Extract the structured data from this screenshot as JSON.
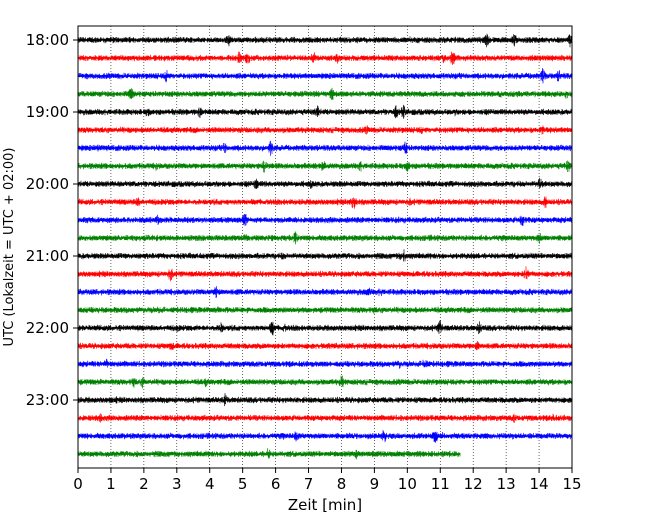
{
  "chart_data": {
    "type": "line",
    "title": "",
    "xlabel": "Zeit  [min]",
    "ylabel": "UTC (Lokalzeit = UTC + 02:00)",
    "xlim": [
      0,
      15
    ],
    "x_ticks": [
      "0",
      "1",
      "2",
      "3",
      "4",
      "5",
      "6",
      "7",
      "8",
      "9",
      "10",
      "11",
      "12",
      "13",
      "14",
      "15"
    ],
    "y_ticks": [
      "18:00",
      "19:00",
      "20:00",
      "21:00",
      "22:00",
      "23:00"
    ],
    "grid": "vertical dotted",
    "trace_interval_min": 15,
    "trace_colors": [
      "#000000",
      "#ff0000",
      "#0000ff",
      "#008000"
    ],
    "traces": [
      {
        "start": "18:00",
        "end_min": 15
      },
      {
        "start": "18:15",
        "end_min": 15
      },
      {
        "start": "18:30",
        "end_min": 15
      },
      {
        "start": "18:45",
        "end_min": 15
      },
      {
        "start": "19:00",
        "end_min": 15
      },
      {
        "start": "19:15",
        "end_min": 15
      },
      {
        "start": "19:30",
        "end_min": 15
      },
      {
        "start": "19:45",
        "end_min": 15
      },
      {
        "start": "20:00",
        "end_min": 15
      },
      {
        "start": "20:15",
        "end_min": 15
      },
      {
        "start": "20:30",
        "end_min": 15
      },
      {
        "start": "20:45",
        "end_min": 15
      },
      {
        "start": "21:00",
        "end_min": 15
      },
      {
        "start": "21:15",
        "end_min": 15
      },
      {
        "start": "21:30",
        "end_min": 15
      },
      {
        "start": "21:45",
        "end_min": 15
      },
      {
        "start": "22:00",
        "end_min": 15
      },
      {
        "start": "22:15",
        "end_min": 15
      },
      {
        "start": "22:30",
        "end_min": 15
      },
      {
        "start": "22:45",
        "end_min": 15
      },
      {
        "start": "23:00",
        "end_min": 15
      },
      {
        "start": "23:15",
        "end_min": 15
      },
      {
        "start": "23:30",
        "end_min": 15
      },
      {
        "start": "23:45",
        "end_min": 11.6
      }
    ]
  }
}
